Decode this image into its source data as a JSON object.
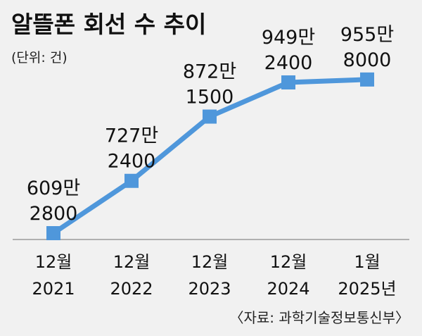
{
  "chart_data": {
    "type": "line",
    "title": "알뜰폰 회선 수 추이",
    "unit": "(단위: 건)",
    "source": "〈자료: 과학기술정보통신부〉",
    "categories": [
      [
        "12월",
        "2021"
      ],
      [
        "12월",
        "2022"
      ],
      [
        "12월",
        "2023"
      ],
      [
        "12월",
        "2024"
      ],
      [
        "1월",
        "2025년"
      ]
    ],
    "values": [
      6092800,
      7272400,
      8721500,
      9492400,
      9558000
    ],
    "data_labels": [
      [
        "609만",
        "2800"
      ],
      [
        "727만",
        "2400"
      ],
      [
        "872만",
        "1500"
      ],
      [
        "949만",
        "2400"
      ],
      [
        "955만",
        "8000"
      ]
    ],
    "series_color": "#4f97db",
    "grid": false,
    "legend": "none"
  }
}
